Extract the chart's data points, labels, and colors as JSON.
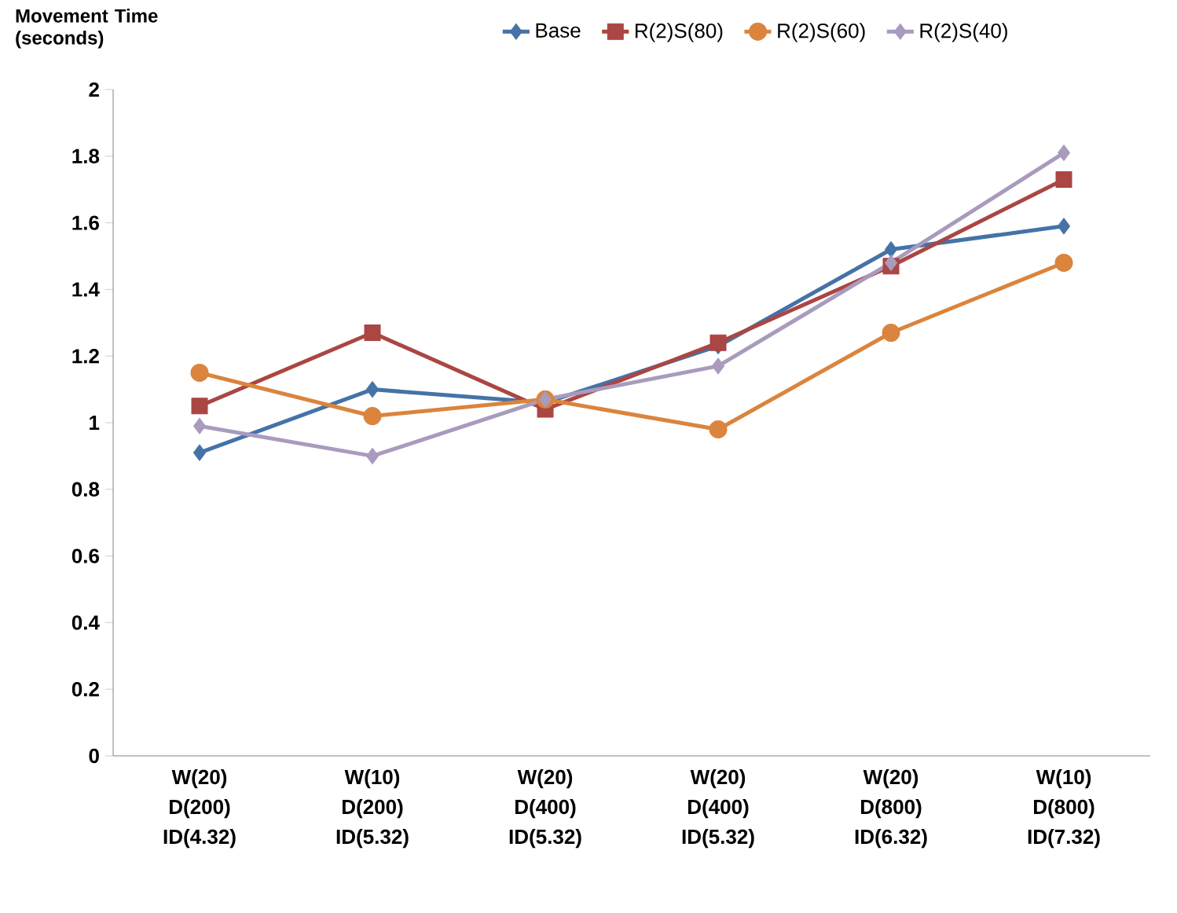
{
  "chart_data": {
    "type": "line",
    "ylabel": "Movement Time (seconds)",
    "categories": [
      "W(20) D(200) ID(4.32)",
      "W(10) D(200) ID(5.32)",
      "W(20) D(400) ID(5.32)",
      "W(20) D(400) ID(5.32)",
      "W(20) D(800) ID(6.32)",
      "W(10) D(800) ID(7.32)"
    ],
    "ylim": [
      0,
      2
    ],
    "yticks": [
      0,
      0.2,
      0.4,
      0.6,
      0.8,
      1,
      1.2,
      1.4,
      1.6,
      1.8,
      2
    ],
    "grid": false,
    "legend": "top",
    "series": [
      {
        "name": "Base",
        "color": "#4572a7",
        "marker": "diamond",
        "values": [
          0.91,
          1.1,
          1.06,
          1.23,
          1.52,
          1.59
        ]
      },
      {
        "name": "R(2)S(80)",
        "color": "#aa4643",
        "marker": "square",
        "values": [
          1.05,
          1.27,
          1.04,
          1.24,
          1.47,
          1.73
        ]
      },
      {
        "name": "R(2)S(60)",
        "color": "#db843d",
        "marker": "circle",
        "values": [
          1.15,
          1.02,
          1.07,
          0.98,
          1.27,
          1.48
        ]
      },
      {
        "name": "R(2)S(40)",
        "color": "#a99bbd",
        "marker": "diamond",
        "values": [
          0.99,
          0.9,
          1.07,
          1.17,
          1.48,
          1.81
        ]
      }
    ]
  }
}
